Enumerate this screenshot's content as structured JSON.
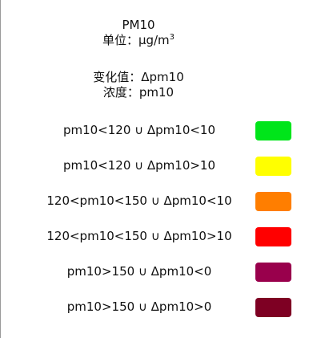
{
  "header": {
    "title": "PM10",
    "unit_label": "单位：μg/m",
    "unit_exponent": "3",
    "change_label": "变化值：Δpm10",
    "concentration_label": "浓度：pm10"
  },
  "legend": {
    "items": [
      {
        "label": "pm10<120 ∪ Δpm10<10",
        "color": "#00e51a"
      },
      {
        "label": "pm10<120 ∪ Δpm10>10",
        "color": "#ffff00"
      },
      {
        "label": "120<pm10<150 ∪ Δpm10<10",
        "color": "#ff7e00"
      },
      {
        "label": "120<pm10<150 ∪ Δpm10>10",
        "color": "#ff0000"
      },
      {
        "label": "pm10>150 ∪ Δpm10<0",
        "color": "#99004c"
      },
      {
        "label": "pm10>150 ∪ Δpm10>0",
        "color": "#7e0023"
      }
    ]
  }
}
